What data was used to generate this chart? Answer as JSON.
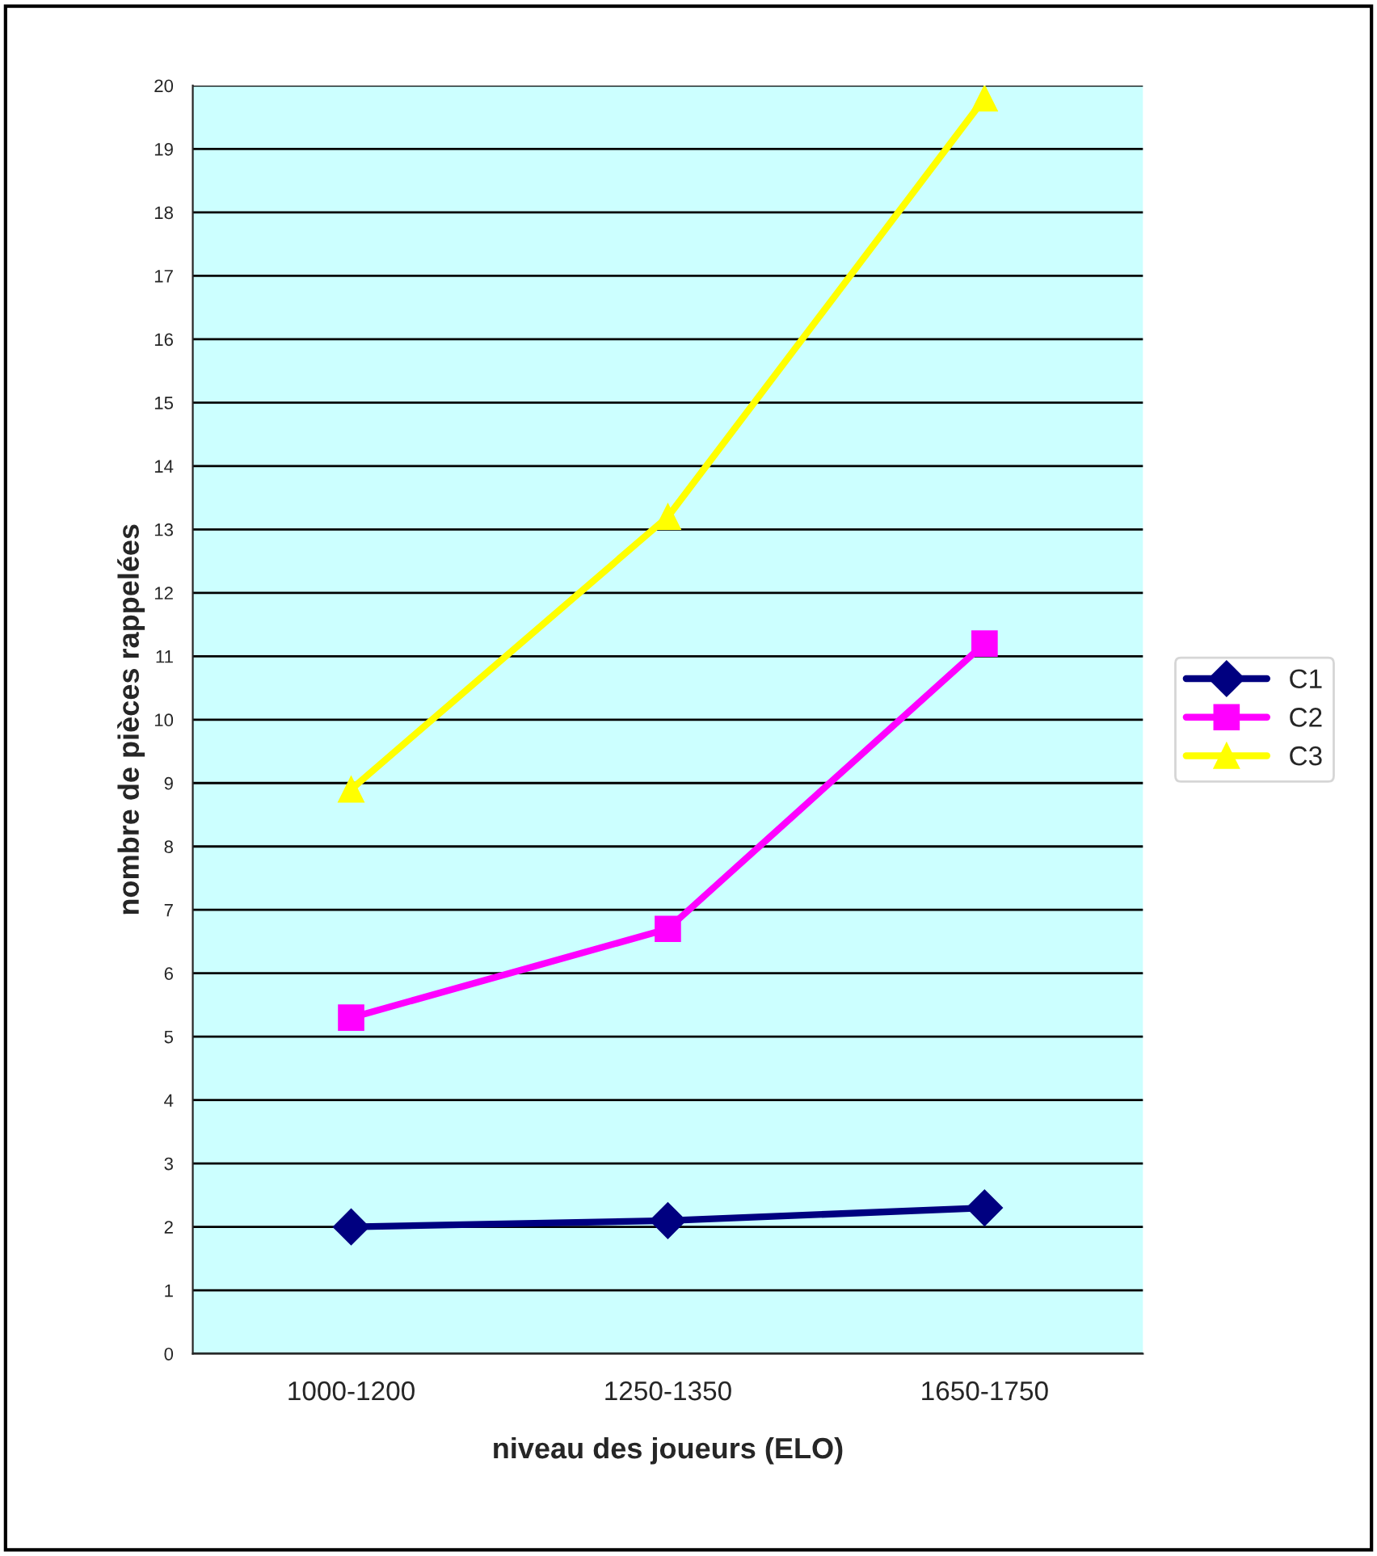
{
  "chart_data": {
    "type": "line",
    "xlabel": "niveau des joueurs (ELO)",
    "ylabel": "nombre de pièces rappelées",
    "categories": [
      "1000-1200",
      "1250-1350",
      "1650-1750"
    ],
    "series": [
      {
        "name": "C1",
        "color": "#000080",
        "values": [
          2.0,
          2.1,
          2.3
        ],
        "marker": "diamond"
      },
      {
        "name": "C2",
        "color": "#ff00ff",
        "values": [
          5.3,
          6.7,
          11.2
        ],
        "marker": "square"
      },
      {
        "name": "C3",
        "color": "#ffff00",
        "values": [
          8.9,
          13.2,
          19.8
        ],
        "marker": "triangle"
      }
    ],
    "ylim": [
      0,
      20
    ],
    "yticks": [
      0,
      1,
      2,
      3,
      4,
      5,
      6,
      7,
      8,
      9,
      10,
      11,
      12,
      13,
      14,
      15,
      16,
      17,
      18,
      19,
      20
    ],
    "grid": "y",
    "legend": "right",
    "line_style": "solid"
  }
}
